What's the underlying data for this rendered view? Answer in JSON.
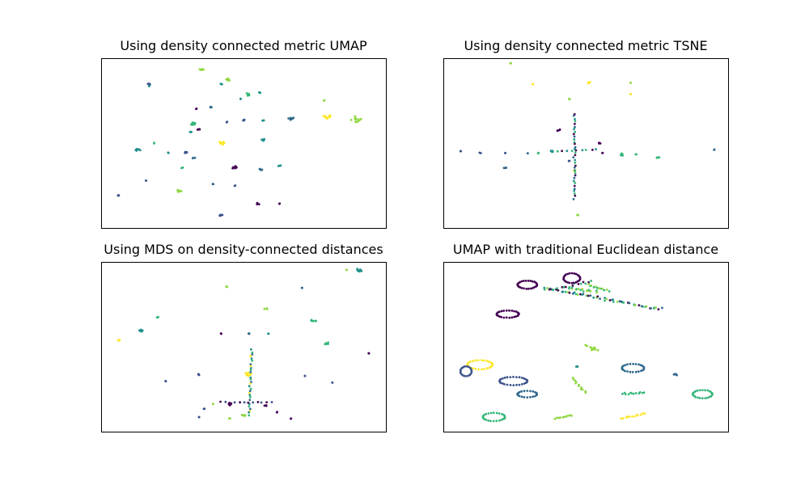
{
  "colors": {
    "viridis_purple": "#440154",
    "viridis_indigo": "#3b528b",
    "viridis_blue": "#31688e",
    "viridis_teal": "#21918c",
    "viridis_green": "#35b779",
    "viridis_lime": "#90d743",
    "viridis_yellow": "#fde725"
  },
  "chart_data": [
    {
      "type": "scatter",
      "title": "Using density connected metric UMAP",
      "xlabel": "",
      "ylabel": "",
      "axis_ticks": "none",
      "grid": false,
      "legend": "none",
      "xlim": [
        0,
        100
      ],
      "ylim": [
        0,
        100
      ],
      "clusters": [
        {
          "x": 35,
          "y": 95,
          "spread": 1.2,
          "n": 6,
          "color": "viridis_lime"
        },
        {
          "x": 16,
          "y": 86,
          "spread": 1.0,
          "n": 5,
          "color": "viridis_indigo"
        },
        {
          "x": 16,
          "y": 85,
          "spread": 0.3,
          "n": 2,
          "color": "viridis_teal"
        },
        {
          "x": 44,
          "y": 89,
          "spread": 1.5,
          "n": 7,
          "color": "viridis_lime"
        },
        {
          "x": 42,
          "y": 86,
          "spread": 0.6,
          "n": 3,
          "color": "viridis_teal"
        },
        {
          "x": 52,
          "y": 80,
          "spread": 1.5,
          "n": 6,
          "color": "viridis_green"
        },
        {
          "x": 56,
          "y": 81,
          "spread": 0.7,
          "n": 3,
          "color": "viridis_teal"
        },
        {
          "x": 49,
          "y": 77,
          "spread": 0.4,
          "n": 2,
          "color": "viridis_teal"
        },
        {
          "x": 33,
          "y": 71,
          "spread": 0.5,
          "n": 2,
          "color": "viridis_purple"
        },
        {
          "x": 38,
          "y": 72,
          "spread": 0.8,
          "n": 3,
          "color": "viridis_blue"
        },
        {
          "x": 32,
          "y": 62,
          "spread": 2.0,
          "n": 14,
          "color": "viridis_green"
        },
        {
          "x": 34,
          "y": 58,
          "spread": 1.2,
          "n": 5,
          "color": "viridis_purple"
        },
        {
          "x": 31,
          "y": 57,
          "spread": 0.8,
          "n": 3,
          "color": "viridis_teal"
        },
        {
          "x": 44,
          "y": 63,
          "spread": 0.6,
          "n": 2,
          "color": "viridis_indigo"
        },
        {
          "x": 50,
          "y": 64,
          "spread": 1.0,
          "n": 4,
          "color": "viridis_indigo"
        },
        {
          "x": 57,
          "y": 64,
          "spread": 0.6,
          "n": 2,
          "color": "viridis_teal"
        },
        {
          "x": 67,
          "y": 65,
          "spread": 1.8,
          "n": 9,
          "color": "viridis_blue"
        },
        {
          "x": 80,
          "y": 66,
          "spread": 2.0,
          "n": 10,
          "color": "viridis_yellow"
        },
        {
          "x": 79,
          "y": 76,
          "spread": 0.4,
          "n": 2,
          "color": "viridis_lime"
        },
        {
          "x": 90,
          "y": 64,
          "spread": 3.5,
          "n": 12,
          "color": "viridis_lime"
        },
        {
          "x": 57,
          "y": 52,
          "spread": 1.2,
          "n": 6,
          "color": "viridis_teal"
        },
        {
          "x": 42,
          "y": 50,
          "spread": 1.8,
          "n": 10,
          "color": "viridis_yellow"
        },
        {
          "x": 12,
          "y": 46,
          "spread": 1.5,
          "n": 8,
          "color": "viridis_teal"
        },
        {
          "x": 18,
          "y": 50,
          "spread": 0.6,
          "n": 2,
          "color": "viridis_green"
        },
        {
          "x": 23,
          "y": 44,
          "spread": 0.4,
          "n": 2,
          "color": "viridis_teal"
        },
        {
          "x": 29,
          "y": 44,
          "spread": 1.2,
          "n": 5,
          "color": "viridis_indigo"
        },
        {
          "x": 32,
          "y": 41,
          "spread": 0.8,
          "n": 3,
          "color": "viridis_blue"
        },
        {
          "x": 28,
          "y": 35,
          "spread": 0.5,
          "n": 2,
          "color": "viridis_green"
        },
        {
          "x": 47,
          "y": 35,
          "spread": 1.5,
          "n": 6,
          "color": "viridis_purple"
        },
        {
          "x": 56,
          "y": 34,
          "spread": 1.2,
          "n": 6,
          "color": "viridis_blue"
        },
        {
          "x": 63,
          "y": 36,
          "spread": 0.6,
          "n": 3,
          "color": "viridis_teal"
        },
        {
          "x": 15,
          "y": 27,
          "spread": 0.4,
          "n": 2,
          "color": "viridis_indigo"
        },
        {
          "x": 27,
          "y": 21,
          "spread": 1.5,
          "n": 8,
          "color": "viridis_lime"
        },
        {
          "x": 39,
          "y": 25,
          "spread": 0.5,
          "n": 2,
          "color": "viridis_blue"
        },
        {
          "x": 47,
          "y": 24,
          "spread": 0.5,
          "n": 2,
          "color": "viridis_indigo"
        },
        {
          "x": 5,
          "y": 18,
          "spread": 1.0,
          "n": 4,
          "color": "viridis_indigo"
        },
        {
          "x": 55,
          "y": 13,
          "spread": 1.2,
          "n": 5,
          "color": "viridis_purple"
        },
        {
          "x": 63,
          "y": 13,
          "spread": 0.5,
          "n": 2,
          "color": "viridis_purple"
        },
        {
          "x": 42,
          "y": 6,
          "spread": 1.2,
          "n": 6,
          "color": "viridis_indigo"
        }
      ]
    },
    {
      "type": "scatter",
      "title": "Using density connected metric TSNE",
      "xlabel": "",
      "ylabel": "",
      "axis_ticks": "none",
      "grid": false,
      "legend": "none",
      "xlim": [
        0,
        100
      ],
      "ylim": [
        0,
        100
      ],
      "clusters": [
        {
          "x": 23,
          "y": 99,
          "spread": 0.4,
          "n": 2,
          "color": "viridis_lime"
        },
        {
          "x": 31,
          "y": 86,
          "spread": 0.5,
          "n": 2,
          "color": "viridis_yellow"
        },
        {
          "x": 51,
          "y": 87,
          "spread": 1.0,
          "n": 5,
          "color": "viridis_yellow"
        },
        {
          "x": 66,
          "y": 80,
          "spread": 0.4,
          "n": 2,
          "color": "viridis_yellow"
        },
        {
          "x": 66,
          "y": 87,
          "spread": 0.4,
          "n": 2,
          "color": "viridis_lime"
        },
        {
          "x": 44,
          "y": 77,
          "spread": 0.4,
          "n": 2,
          "color": "viridis_lime"
        },
        {
          "x": 40,
          "y": 58,
          "spread": 1.2,
          "n": 5,
          "color": "viridis_purple"
        },
        {
          "x": 55,
          "y": 50,
          "spread": 0.8,
          "n": 3,
          "color": "viridis_purple"
        },
        {
          "x": 56,
          "y": 44,
          "spread": 0.4,
          "n": 2,
          "color": "viridis_purple"
        },
        {
          "x": 5,
          "y": 45,
          "spread": 0.6,
          "n": 3,
          "color": "viridis_indigo"
        },
        {
          "x": 12,
          "y": 44,
          "spread": 0.4,
          "n": 2,
          "color": "viridis_indigo"
        },
        {
          "x": 21,
          "y": 44,
          "spread": 0.4,
          "n": 2,
          "color": "viridis_indigo"
        },
        {
          "x": 29,
          "y": 44,
          "spread": 0.5,
          "n": 2,
          "color": "viridis_blue"
        },
        {
          "x": 33,
          "y": 44,
          "spread": 0.6,
          "n": 3,
          "color": "viridis_green"
        },
        {
          "x": 38,
          "y": 45,
          "spread": 0.8,
          "n": 4,
          "color": "viridis_teal"
        },
        {
          "x": 63,
          "y": 43,
          "spread": 1.5,
          "n": 6,
          "color": "viridis_green"
        },
        {
          "x": 68,
          "y": 43,
          "spread": 0.4,
          "n": 2,
          "color": "viridis_green"
        },
        {
          "x": 76,
          "y": 41,
          "spread": 1.2,
          "n": 5,
          "color": "viridis_green"
        },
        {
          "x": 96,
          "y": 46,
          "spread": 0.4,
          "n": 2,
          "color": "viridis_blue"
        },
        {
          "x": 21,
          "y": 35,
          "spread": 1.0,
          "n": 4,
          "color": "viridis_blue"
        },
        {
          "x": 44,
          "y": 39,
          "spread": 0.4,
          "n": 2,
          "color": "viridis_indigo"
        },
        {
          "x": 46,
          "y": 33,
          "spread": 0.6,
          "n": 3,
          "color": "viridis_yellow"
        },
        {
          "x": 47,
          "y": 6,
          "spread": 0.4,
          "n": 3,
          "color": "viridis_lime"
        }
      ],
      "lines": [
        {
          "x0": 46,
          "y0": 68,
          "x1": 46,
          "y1": 16,
          "n": 34,
          "jitter": 0.6,
          "colors": [
            "viridis_purple",
            "viridis_blue",
            "viridis_teal",
            "viridis_green"
          ]
        },
        {
          "x0": 38,
          "y0": 45,
          "x1": 54,
          "y1": 46,
          "n": 10,
          "jitter": 0.5,
          "colors": [
            "viridis_teal",
            "viridis_green",
            "viridis_purple"
          ]
        }
      ]
    },
    {
      "type": "scatter",
      "title": "Using MDS on density-connected distances",
      "xlabel": "",
      "ylabel": "",
      "axis_ticks": "none",
      "grid": false,
      "legend": "none",
      "xlim": [
        0,
        100
      ],
      "ylim": [
        0,
        100
      ],
      "clusters": [
        {
          "x": 92,
          "y": 97,
          "spread": 2.0,
          "n": 10,
          "color": "viridis_teal"
        },
        {
          "x": 87,
          "y": 97,
          "spread": 0.4,
          "n": 2,
          "color": "viridis_lime"
        },
        {
          "x": 44,
          "y": 87,
          "spread": 0.7,
          "n": 3,
          "color": "viridis_lime"
        },
        {
          "x": 71,
          "y": 86,
          "spread": 0.4,
          "n": 2,
          "color": "viridis_blue"
        },
        {
          "x": 58,
          "y": 73,
          "spread": 0.8,
          "n": 4,
          "color": "viridis_lime"
        },
        {
          "x": 19,
          "y": 68,
          "spread": 0.7,
          "n": 3,
          "color": "viridis_green"
        },
        {
          "x": 75,
          "y": 66,
          "spread": 1.5,
          "n": 6,
          "color": "viridis_green"
        },
        {
          "x": 13,
          "y": 60,
          "spread": 1.5,
          "n": 6,
          "color": "viridis_teal"
        },
        {
          "x": 5,
          "y": 54,
          "spread": 0.8,
          "n": 3,
          "color": "viridis_yellow"
        },
        {
          "x": 42,
          "y": 58,
          "spread": 0.4,
          "n": 2,
          "color": "viridis_purple"
        },
        {
          "x": 52,
          "y": 58,
          "spread": 0.6,
          "n": 3,
          "color": "viridis_blue"
        },
        {
          "x": 59,
          "y": 58,
          "spread": 0.3,
          "n": 2,
          "color": "viridis_teal"
        },
        {
          "x": 80,
          "y": 52,
          "spread": 1.2,
          "n": 6,
          "color": "viridis_green"
        },
        {
          "x": 95,
          "y": 46,
          "spread": 0.4,
          "n": 2,
          "color": "viridis_purple"
        },
        {
          "x": 52,
          "y": 33,
          "spread": 1.8,
          "n": 10,
          "color": "viridis_yellow"
        },
        {
          "x": 34,
          "y": 33,
          "spread": 0.6,
          "n": 3,
          "color": "viridis_indigo"
        },
        {
          "x": 72,
          "y": 32,
          "spread": 0.4,
          "n": 2,
          "color": "viridis_indigo"
        },
        {
          "x": 22,
          "y": 29,
          "spread": 0.4,
          "n": 2,
          "color": "viridis_indigo"
        },
        {
          "x": 82,
          "y": 28,
          "spread": 0.4,
          "n": 2,
          "color": "viridis_indigo"
        },
        {
          "x": 45,
          "y": 15,
          "spread": 1.2,
          "n": 6,
          "color": "viridis_purple"
        },
        {
          "x": 58,
          "y": 14,
          "spread": 1.0,
          "n": 4,
          "color": "viridis_purple"
        },
        {
          "x": 39,
          "y": 15,
          "spread": 0.4,
          "n": 2,
          "color": "viridis_lime"
        },
        {
          "x": 36,
          "y": 12,
          "spread": 0.4,
          "n": 2,
          "color": "viridis_indigo"
        },
        {
          "x": 34,
          "y": 7,
          "spread": 0.4,
          "n": 2,
          "color": "viridis_indigo"
        },
        {
          "x": 50,
          "y": 8,
          "spread": 1.2,
          "n": 6,
          "color": "viridis_lime"
        },
        {
          "x": 62,
          "y": 10,
          "spread": 0.5,
          "n": 2,
          "color": "viridis_purple"
        },
        {
          "x": 67,
          "y": 6,
          "spread": 0.4,
          "n": 2,
          "color": "viridis_purple"
        },
        {
          "x": 45,
          "y": 6,
          "spread": 0.4,
          "n": 2,
          "color": "viridis_lime"
        }
      ],
      "lines": [
        {
          "x0": 53,
          "y0": 48,
          "x1": 52,
          "y1": 8,
          "n": 30,
          "jitter": 0.7,
          "colors": [
            "viridis_teal",
            "viridis_green",
            "viridis_blue",
            "viridis_yellow"
          ]
        },
        {
          "x0": 42,
          "y0": 16,
          "x1": 60,
          "y1": 16,
          "n": 12,
          "jitter": 0.7,
          "colors": [
            "viridis_purple",
            "viridis_indigo"
          ]
        }
      ]
    },
    {
      "type": "scatter",
      "title": "UMAP with traditional Euclidean distance",
      "xlabel": "",
      "ylabel": "",
      "axis_ticks": "none",
      "grid": false,
      "legend": "none",
      "xlim": [
        0,
        100
      ],
      "ylim": [
        0,
        100
      ],
      "rings": [
        {
          "x": 29,
          "y": 88,
          "rx": 3.5,
          "ry": 2.5,
          "n": 26,
          "color": "viridis_purple"
        },
        {
          "x": 45,
          "y": 92,
          "rx": 3.0,
          "ry": 3.0,
          "n": 24,
          "color": "viridis_purple"
        },
        {
          "x": 22,
          "y": 70,
          "rx": 4.0,
          "ry": 2.2,
          "n": 26,
          "color": "viridis_purple"
        },
        {
          "x": 12,
          "y": 39,
          "rx": 4.5,
          "ry": 2.8,
          "n": 26,
          "color": "viridis_yellow"
        },
        {
          "x": 7,
          "y": 35,
          "rx": 2.0,
          "ry": 3.0,
          "n": 18,
          "color": "viridis_indigo"
        },
        {
          "x": 24,
          "y": 29,
          "rx": 5.0,
          "ry": 2.5,
          "n": 28,
          "color": "viridis_indigo"
        },
        {
          "x": 29,
          "y": 21,
          "rx": 3.5,
          "ry": 2.0,
          "n": 20,
          "color": "viridis_blue"
        },
        {
          "x": 67,
          "y": 37,
          "rx": 4.0,
          "ry": 2.5,
          "n": 24,
          "color": "viridis_blue"
        },
        {
          "x": 92,
          "y": 21,
          "rx": 3.5,
          "ry": 2.5,
          "n": 24,
          "color": "viridis_green"
        },
        {
          "x": 17,
          "y": 7,
          "rx": 4.0,
          "ry": 2.5,
          "n": 24,
          "color": "viridis_green"
        }
      ],
      "clusters": [
        {
          "x": 53,
          "y": 49,
          "spread": 1.5,
          "n": 8,
          "color": "viridis_lime"
        },
        {
          "x": 47,
          "y": 38,
          "spread": 0.5,
          "n": 3,
          "color": "viridis_teal"
        },
        {
          "x": 82,
          "y": 33,
          "spread": 1.0,
          "n": 6,
          "color": "viridis_blue"
        }
      ],
      "lines": [
        {
          "x0": 35,
          "y0": 86,
          "x1": 77,
          "y1": 73,
          "n": 60,
          "jitter": 1.3,
          "colors": [
            "viridis_teal",
            "viridis_green",
            "viridis_lime",
            "viridis_purple",
            "viridis_blue"
          ]
        },
        {
          "x0": 37,
          "y0": 85,
          "x1": 52,
          "y1": 90,
          "n": 16,
          "jitter": 1.0,
          "colors": [
            "viridis_purple",
            "viridis_green"
          ]
        },
        {
          "x0": 44,
          "y0": 86,
          "x1": 54,
          "y1": 84,
          "n": 16,
          "jitter": 1.2,
          "colors": [
            "viridis_green",
            "viridis_lime"
          ]
        },
        {
          "x0": 51,
          "y0": 88,
          "x1": 58,
          "y1": 84,
          "n": 12,
          "jitter": 1.0,
          "colors": [
            "viridis_lime",
            "viridis_green"
          ]
        },
        {
          "x0": 45,
          "y0": 31,
          "x1": 50,
          "y1": 22,
          "n": 12,
          "jitter": 0.8,
          "colors": [
            "viridis_lime"
          ]
        },
        {
          "x0": 63,
          "y0": 21,
          "x1": 71,
          "y1": 22,
          "n": 12,
          "jitter": 0.8,
          "colors": [
            "viridis_green"
          ]
        },
        {
          "x0": 39,
          "y0": 6,
          "x1": 45,
          "y1": 8,
          "n": 10,
          "jitter": 0.7,
          "colors": [
            "viridis_lime"
          ]
        },
        {
          "x0": 63,
          "y0": 6,
          "x1": 71,
          "y1": 9,
          "n": 12,
          "jitter": 0.7,
          "colors": [
            "viridis_yellow"
          ]
        },
        {
          "x0": 50,
          "y0": 51,
          "x1": 54,
          "y1": 48,
          "n": 6,
          "jitter": 0.6,
          "colors": [
            "viridis_lime"
          ]
        }
      ]
    }
  ]
}
